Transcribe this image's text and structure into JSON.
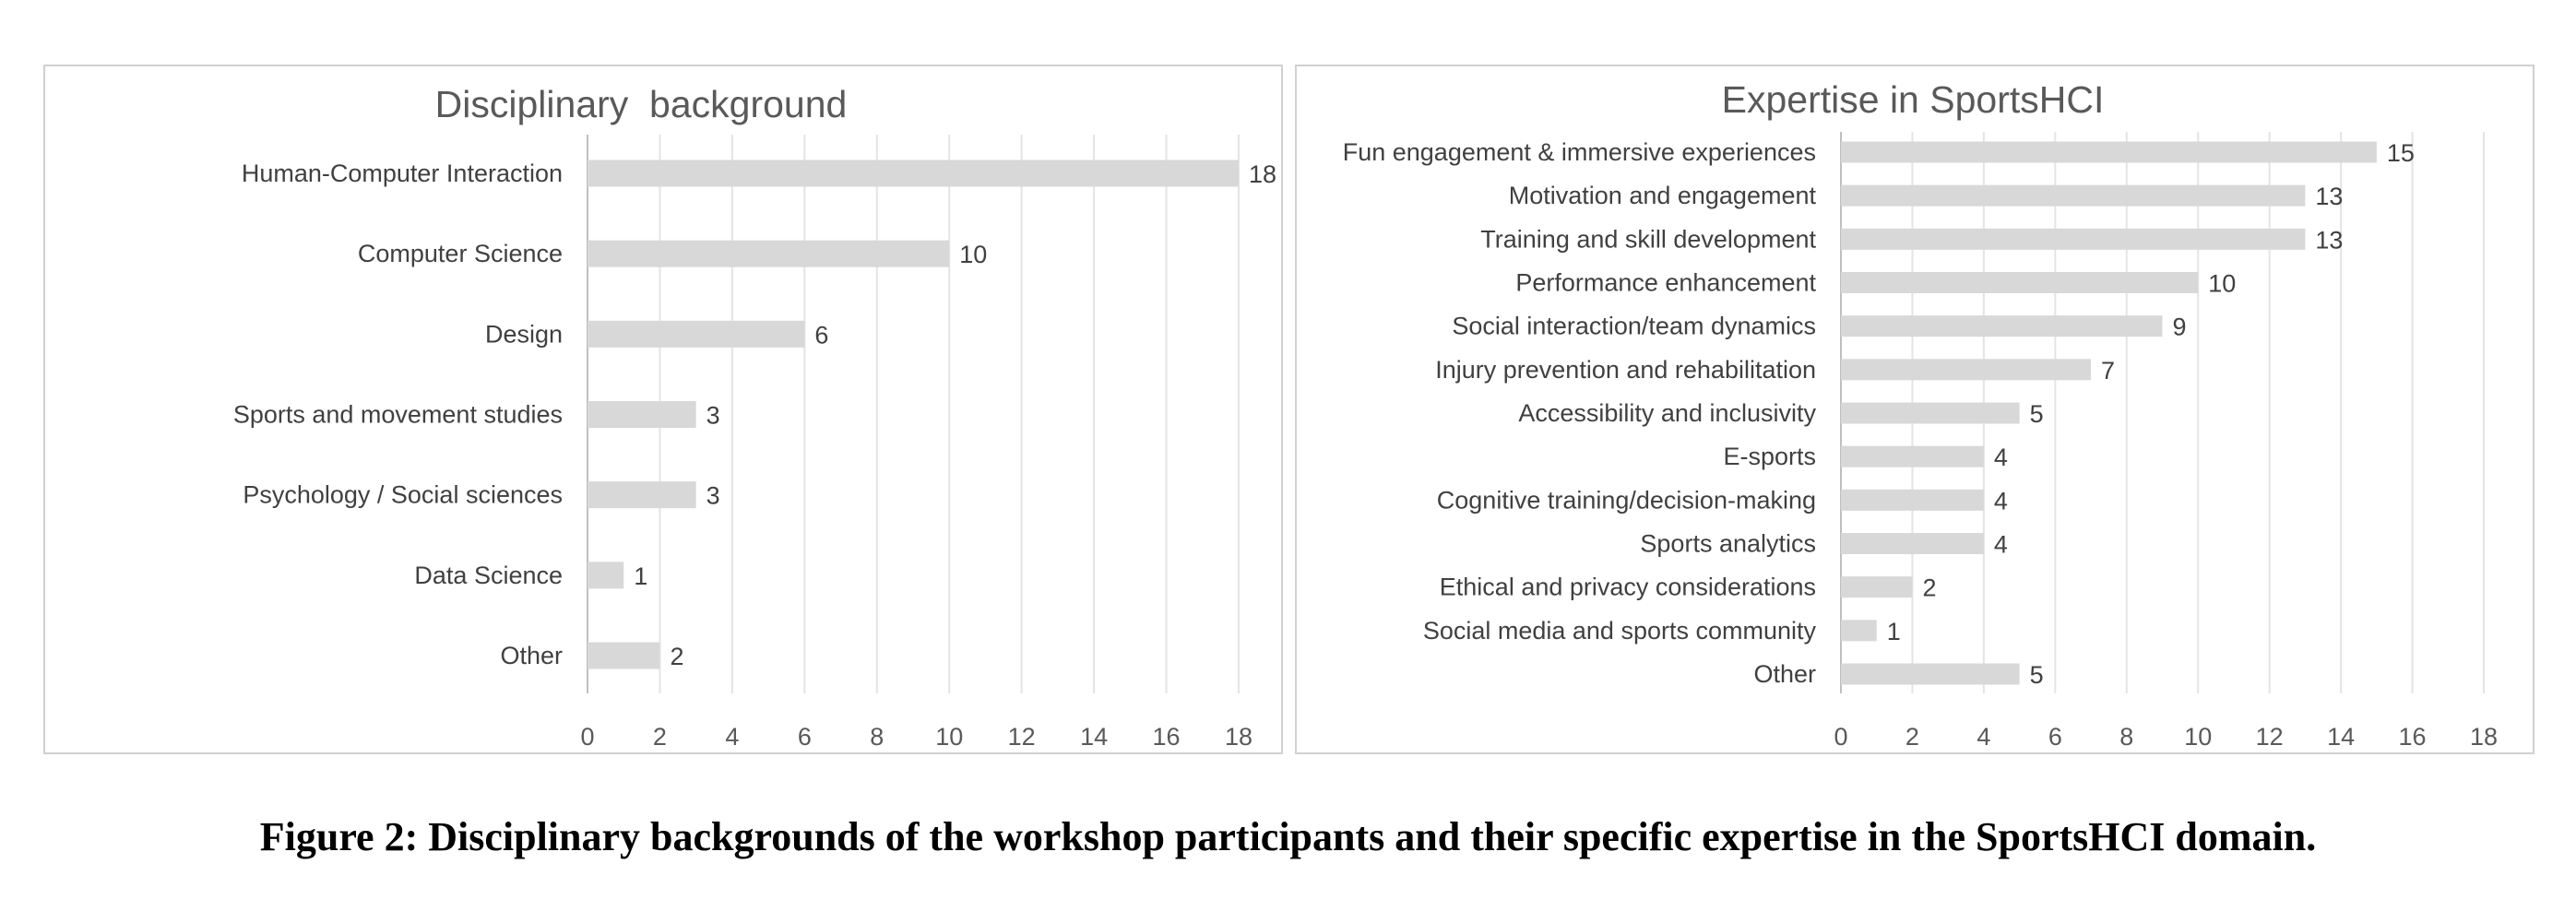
{
  "chart_data": [
    {
      "type": "bar",
      "orientation": "horizontal",
      "title": "Disciplinary  background",
      "categories": [
        "Human-Computer Interaction",
        "Computer Science",
        "Design",
        "Sports and movement studies",
        "Psychology / Social sciences",
        "Data Science",
        "Other"
      ],
      "values": [
        18,
        10,
        6,
        3,
        3,
        1,
        2
      ],
      "xlim": [
        0,
        18
      ],
      "xticks": [
        0,
        2,
        4,
        6,
        8,
        10,
        12,
        14,
        16,
        18
      ],
      "grid": "vertical",
      "bar_color": "#d8d8d8",
      "data_labels": true
    },
    {
      "type": "bar",
      "orientation": "horizontal",
      "title": "Expertise in SportsHCI",
      "categories": [
        "Fun engagement & immersive experiences",
        "Motivation and engagement",
        "Training and skill development",
        "Performance enhancement",
        "Social interaction/team dynamics",
        "Injury prevention and rehabilitation",
        "Accessibility and inclusivity",
        "E-sports",
        "Cognitive training/decision-making",
        "Sports analytics",
        "Ethical and privacy considerations",
        "Social media and sports community",
        "Other"
      ],
      "values": [
        15,
        13,
        13,
        10,
        9,
        7,
        5,
        4,
        4,
        4,
        2,
        1,
        5
      ],
      "xlim": [
        0,
        18
      ],
      "xticks": [
        0,
        2,
        4,
        6,
        8,
        10,
        12,
        14,
        16,
        18
      ],
      "grid": "vertical",
      "bar_color": "#d8d8d8",
      "data_labels": true
    }
  ],
  "caption": "Figure 2: Disciplinary backgrounds of the workshop participants and their specific expertise in the SportsHCI domain."
}
